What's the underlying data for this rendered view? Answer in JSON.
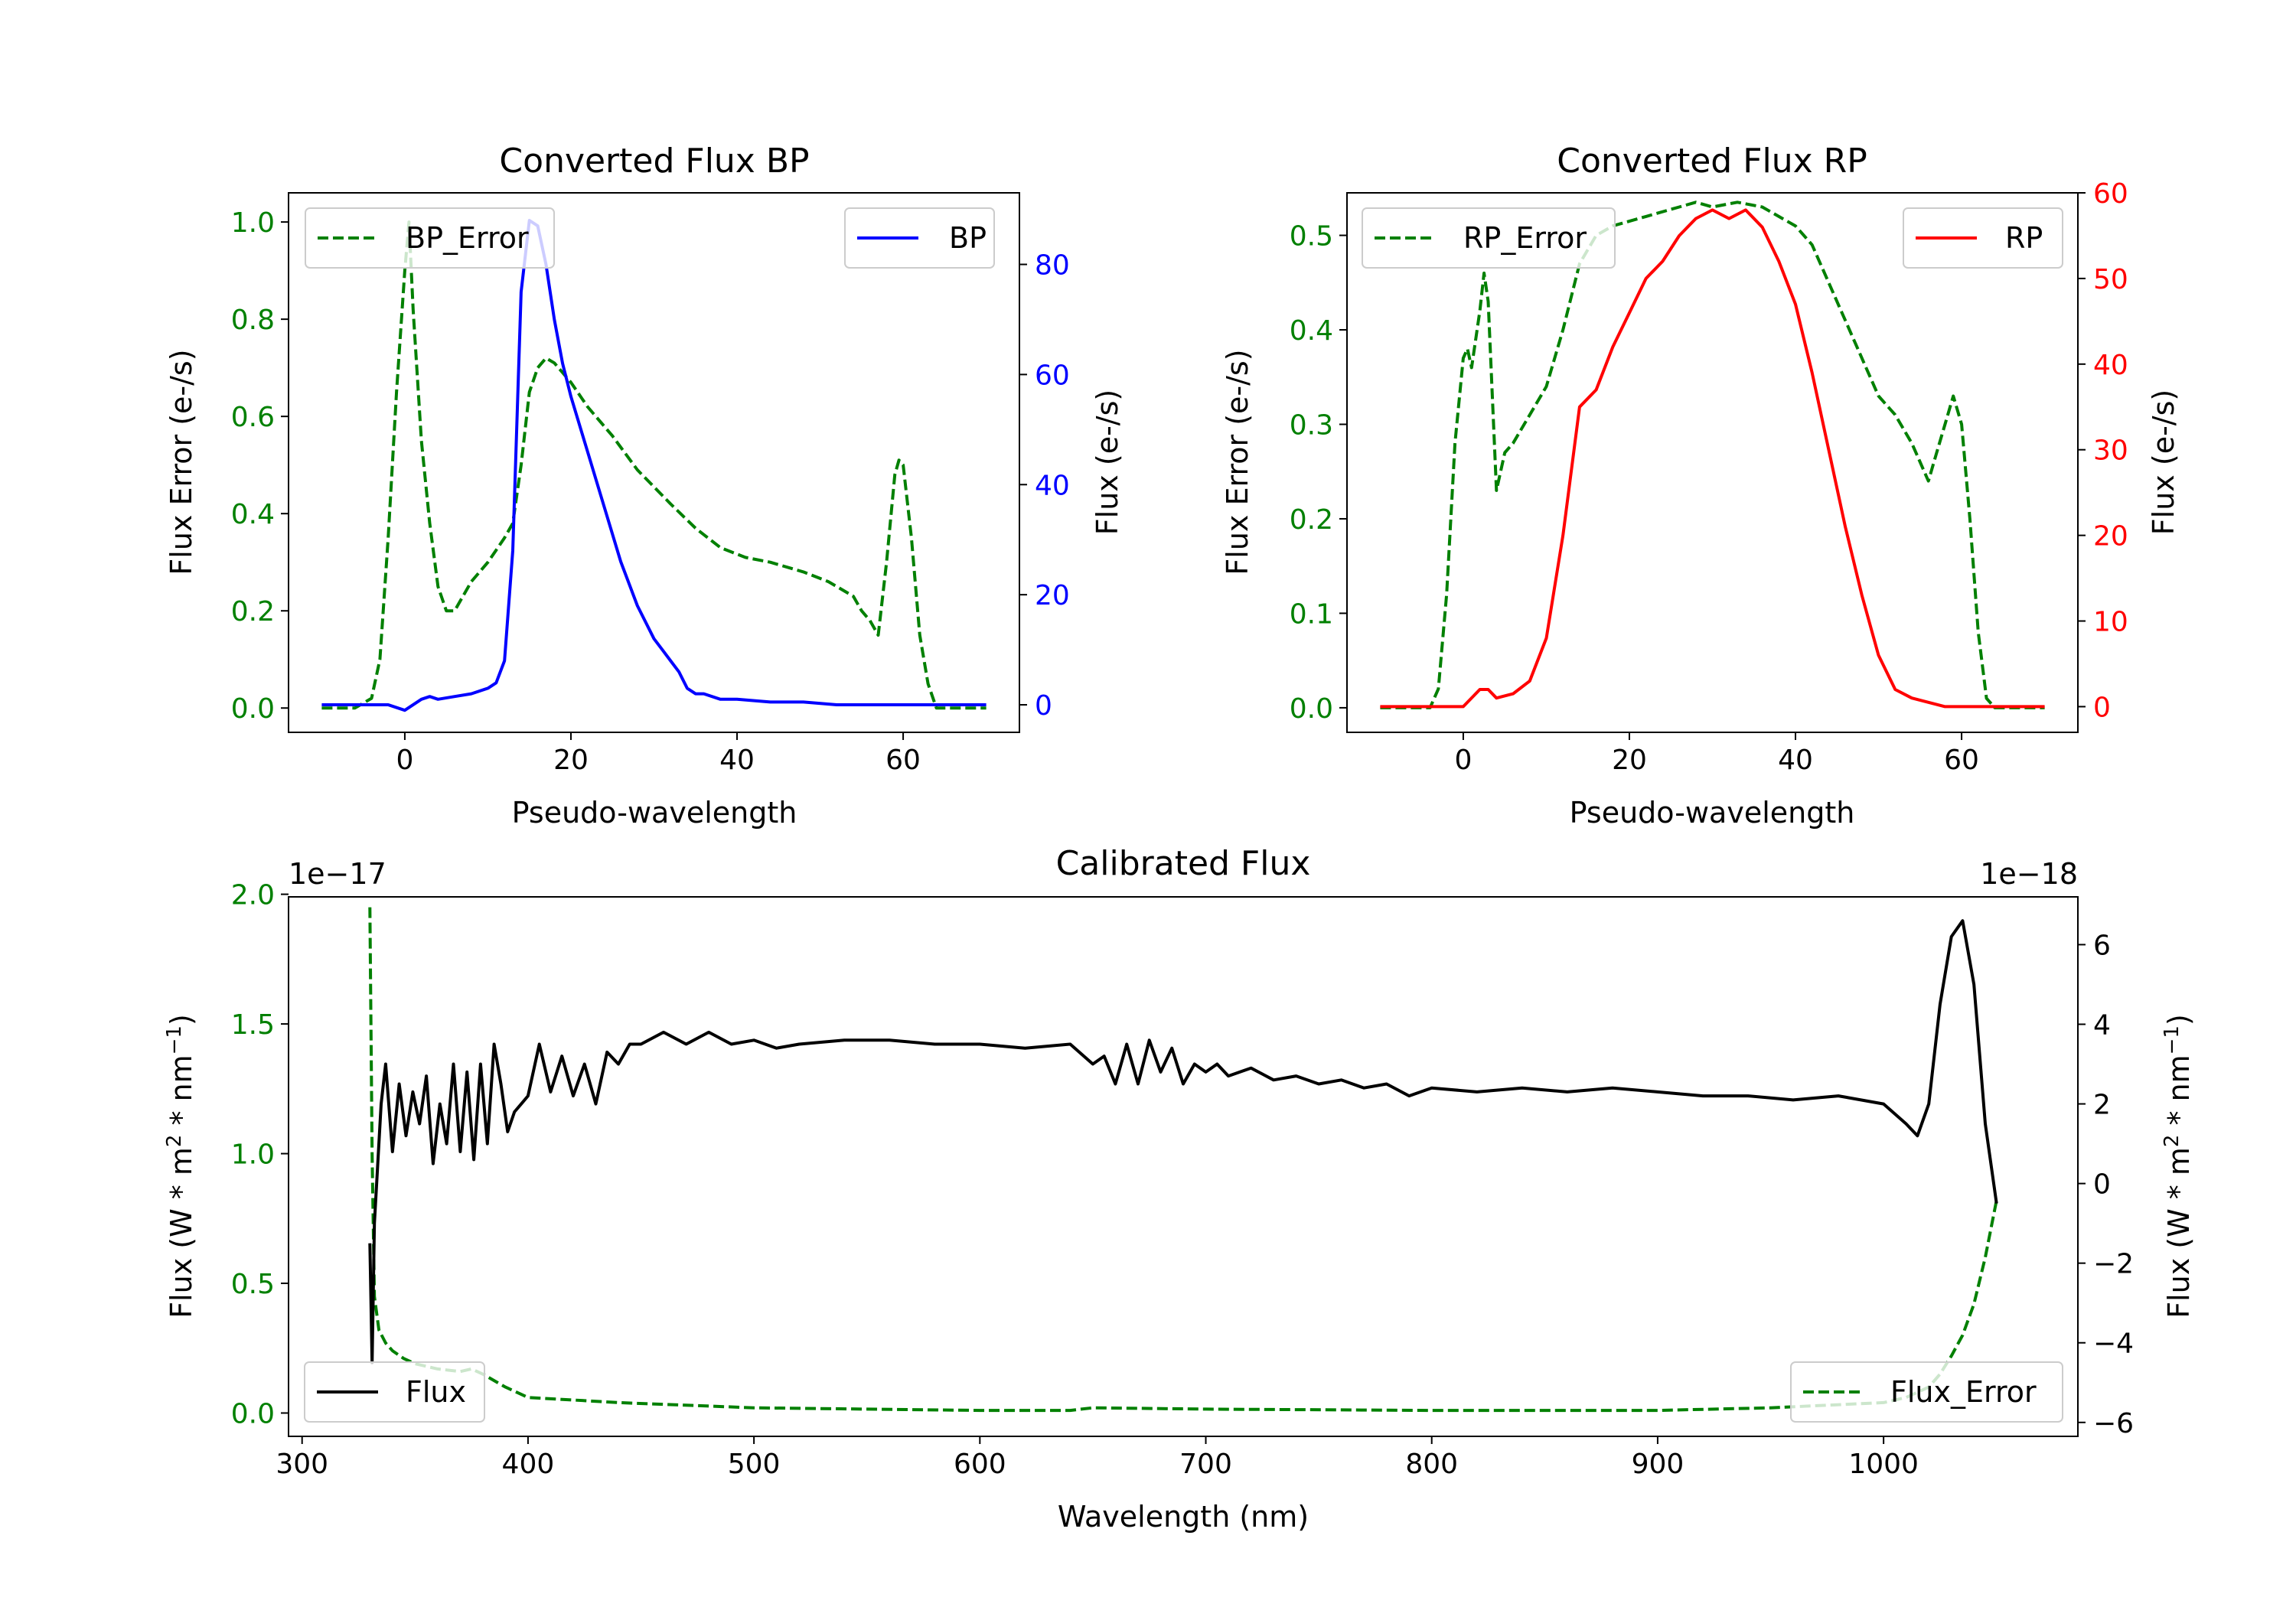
{
  "colors": {
    "green": "#008000",
    "blue": "#0000ff",
    "red": "#ff0000",
    "black": "#000000"
  },
  "chart_data": [
    {
      "type": "line",
      "title": "Converted Flux BP",
      "xlabel": "Pseudo-wavelength",
      "ylabel_left": "Flux Error (e-/s)",
      "ylabel_right": "Flux (e-/s)",
      "xlim": [
        -14,
        74
      ],
      "ylim_left": [
        -0.05,
        1.06
      ],
      "ylim_right": [
        -5,
        93
      ],
      "xticks": [
        0,
        20,
        40,
        60
      ],
      "yticks_left": [
        0.0,
        0.2,
        0.4,
        0.6,
        0.8,
        1.0
      ],
      "yticks_right": [
        0,
        20,
        40,
        60,
        80
      ],
      "series": [
        {
          "name": "BP_Error",
          "axis": "left",
          "style": "dashed",
          "color": "#008000",
          "x": [
            -10,
            -6,
            -4,
            -3,
            -2,
            -1,
            0,
            0.5,
            1,
            2,
            3,
            4,
            5,
            6,
            8,
            10,
            12,
            13,
            14,
            15,
            16,
            17,
            18,
            20,
            22,
            25,
            28,
            32,
            35,
            38,
            41,
            44,
            48,
            51,
            54,
            55,
            56,
            57,
            58,
            59,
            59.5,
            60,
            61,
            62,
            63,
            64,
            65,
            70
          ],
          "y": [
            0.0,
            0.0,
            0.02,
            0.1,
            0.35,
            0.65,
            0.9,
            1.0,
            0.82,
            0.55,
            0.38,
            0.25,
            0.2,
            0.2,
            0.26,
            0.3,
            0.35,
            0.38,
            0.5,
            0.65,
            0.7,
            0.72,
            0.71,
            0.67,
            0.62,
            0.56,
            0.49,
            0.42,
            0.37,
            0.33,
            0.31,
            0.3,
            0.28,
            0.26,
            0.23,
            0.2,
            0.18,
            0.15,
            0.3,
            0.48,
            0.51,
            0.5,
            0.35,
            0.15,
            0.05,
            0.0,
            0.0,
            0.0
          ]
        },
        {
          "name": "BP",
          "axis": "right",
          "style": "solid",
          "color": "#0000ff",
          "x": [
            -10,
            -6,
            -4,
            -2,
            0,
            2,
            3,
            4,
            6,
            8,
            10,
            11,
            12,
            13,
            14,
            15,
            16,
            17,
            18,
            19,
            20,
            22,
            24,
            26,
            28,
            30,
            31,
            32,
            33,
            34,
            35,
            36,
            38,
            40,
            44,
            48,
            52,
            56,
            60,
            64,
            70
          ],
          "y": [
            0,
            0,
            0,
            0,
            -1,
            1,
            1.5,
            1,
            1.5,
            2,
            3,
            4,
            8,
            28,
            75,
            88,
            87,
            80,
            70,
            62,
            56,
            46,
            36,
            26,
            18,
            12,
            10,
            8,
            6,
            3,
            2,
            2,
            1,
            1,
            0.5,
            0.5,
            0,
            0,
            0,
            0,
            0
          ]
        }
      ]
    },
    {
      "type": "line",
      "title": "Converted Flux RP",
      "xlabel": "Pseudo-wavelength",
      "ylabel_left": "Flux Error (e-/s)",
      "ylabel_right": "Flux (e-/s)",
      "xlim": [
        -14,
        74
      ],
      "ylim_left": [
        -0.026,
        0.545
      ],
      "ylim_right": [
        -3,
        60
      ],
      "xticks": [
        0,
        20,
        40,
        60
      ],
      "yticks_left": [
        0.0,
        0.1,
        0.2,
        0.3,
        0.4,
        0.5
      ],
      "yticks_right": [
        0,
        10,
        20,
        30,
        40,
        50,
        60
      ],
      "series": [
        {
          "name": "RP_Error",
          "axis": "left",
          "style": "dashed",
          "color": "#008000",
          "x": [
            -10,
            -4,
            -3,
            -2,
            -1,
            0,
            0.5,
            1,
            1.5,
            2,
            2.5,
            3,
            4,
            5,
            6,
            8,
            10,
            12,
            14,
            16,
            18,
            22,
            26,
            28,
            30,
            33,
            36,
            38,
            40,
            42,
            44,
            46,
            48,
            50,
            52,
            54,
            56,
            57,
            58,
            59,
            60,
            61,
            62,
            63,
            64,
            70
          ],
          "y": [
            0.0,
            0.0,
            0.02,
            0.12,
            0.28,
            0.37,
            0.38,
            0.36,
            0.39,
            0.42,
            0.46,
            0.43,
            0.23,
            0.27,
            0.28,
            0.31,
            0.34,
            0.4,
            0.47,
            0.5,
            0.51,
            0.52,
            0.53,
            0.535,
            0.53,
            0.535,
            0.53,
            0.52,
            0.51,
            0.49,
            0.45,
            0.41,
            0.37,
            0.33,
            0.31,
            0.28,
            0.24,
            0.27,
            0.3,
            0.33,
            0.3,
            0.2,
            0.08,
            0.01,
            0.0,
            0.0
          ]
        },
        {
          "name": "RP",
          "axis": "right",
          "style": "solid",
          "color": "#ff0000",
          "x": [
            -10,
            -4,
            0,
            2,
            3,
            4,
            6,
            8,
            10,
            12,
            14,
            16,
            18,
            20,
            22,
            24,
            26,
            28,
            30,
            32,
            34,
            36,
            38,
            40,
            42,
            44,
            46,
            48,
            50,
            52,
            54,
            56,
            58,
            60,
            70
          ],
          "y": [
            0,
            0,
            0,
            2,
            2,
            1,
            1.5,
            3,
            8,
            20,
            35,
            37,
            42,
            46,
            50,
            52,
            55,
            57,
            58,
            57,
            58,
            56,
            52,
            47,
            39,
            30,
            21,
            13,
            6,
            2,
            1,
            0.5,
            0,
            0,
            0
          ]
        }
      ]
    },
    {
      "type": "line",
      "title": "Calibrated Flux",
      "xlabel": "Wavelength (nm)",
      "ylabel_left": "Flux (W * m^2 * nm^-1)",
      "ylabel_right": "Flux (W * m^2 * nm^-1)",
      "offset_left": "1e−17",
      "offset_right": "1e−18",
      "xlim": [
        294,
        1086
      ],
      "ylim_left": [
        -0.09,
        1.99
      ],
      "ylim_right": [
        -6.35,
        7.2
      ],
      "xticks": [
        300,
        400,
        500,
        600,
        700,
        800,
        900,
        1000
      ],
      "yticks_left": [
        0.0,
        0.5,
        1.0,
        1.5,
        2.0
      ],
      "yticks_right": [
        -6,
        -4,
        -2,
        0,
        2,
        4,
        6
      ],
      "series": [
        {
          "name": "Flux_Error",
          "axis": "left",
          "style": "dashed",
          "color": "#008000",
          "x": [
            330,
            331,
            332,
            334,
            337,
            340,
            345,
            350,
            360,
            370,
            375,
            380,
            390,
            400,
            420,
            440,
            500,
            600,
            640,
            650,
            700,
            800,
            900,
            950,
            1000,
            1010,
            1020,
            1025,
            1030,
            1035,
            1040,
            1045,
            1050
          ],
          "y": [
            1.95,
            1.0,
            0.45,
            0.32,
            0.27,
            0.24,
            0.21,
            0.19,
            0.17,
            0.16,
            0.17,
            0.15,
            0.1,
            0.06,
            0.05,
            0.04,
            0.02,
            0.01,
            0.01,
            0.02,
            0.015,
            0.01,
            0.01,
            0.02,
            0.04,
            0.06,
            0.1,
            0.15,
            0.22,
            0.3,
            0.42,
            0.6,
            0.82
          ]
        },
        {
          "name": "Flux",
          "axis": "right",
          "style": "solid",
          "color": "#000000",
          "x": [
            330,
            331,
            332,
            335,
            337,
            340,
            343,
            346,
            349,
            352,
            355,
            358,
            361,
            364,
            367,
            370,
            373,
            376,
            379,
            382,
            385,
            388,
            391,
            394,
            397,
            400,
            405,
            410,
            415,
            420,
            425,
            430,
            435,
            440,
            445,
            450,
            460,
            470,
            480,
            490,
            500,
            510,
            520,
            540,
            560,
            580,
            600,
            620,
            640,
            650,
            655,
            660,
            665,
            670,
            675,
            680,
            685,
            690,
            695,
            700,
            705,
            710,
            720,
            730,
            740,
            750,
            760,
            770,
            780,
            790,
            800,
            820,
            840,
            860,
            880,
            900,
            920,
            940,
            960,
            980,
            1000,
            1010,
            1015,
            1020,
            1025,
            1030,
            1035,
            1040,
            1045,
            1050
          ],
          "y": [
            -1.5,
            -4.5,
            -1.0,
            2.0,
            3.0,
            0.8,
            2.5,
            1.2,
            2.3,
            1.5,
            2.7,
            0.5,
            2.0,
            1.0,
            3.0,
            0.8,
            2.8,
            0.6,
            3.0,
            1.0,
            3.5,
            2.5,
            1.3,
            1.8,
            2.0,
            2.2,
            3.5,
            2.3,
            3.2,
            2.2,
            3.0,
            2.0,
            3.3,
            3.0,
            3.5,
            3.5,
            3.8,
            3.5,
            3.8,
            3.5,
            3.6,
            3.4,
            3.5,
            3.6,
            3.6,
            3.5,
            3.5,
            3.4,
            3.5,
            3.0,
            3.2,
            2.5,
            3.5,
            2.5,
            3.6,
            2.8,
            3.4,
            2.5,
            3.0,
            2.8,
            3.0,
            2.7,
            2.9,
            2.6,
            2.7,
            2.5,
            2.6,
            2.4,
            2.5,
            2.2,
            2.4,
            2.3,
            2.4,
            2.3,
            2.4,
            2.3,
            2.2,
            2.2,
            2.1,
            2.2,
            2.0,
            1.5,
            1.2,
            2.0,
            4.5,
            6.2,
            6.6,
            5.0,
            1.5,
            -0.5
          ]
        }
      ]
    }
  ]
}
